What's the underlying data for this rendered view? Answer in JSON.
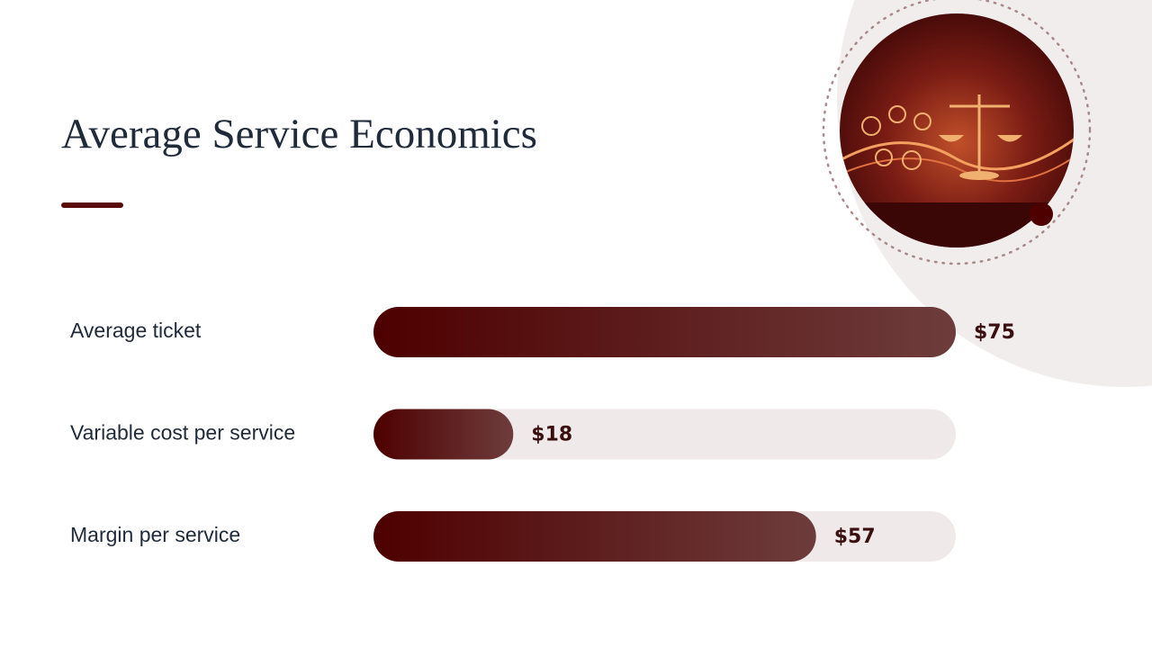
{
  "chart_data": {
    "type": "bar",
    "orientation": "horizontal",
    "title": "Average Service Economics",
    "categories": [
      "Average ticket",
      "Variable cost per service",
      "Margin per service"
    ],
    "values": [
      75,
      18,
      57
    ],
    "value_labels": [
      "$75",
      "$18",
      "$57"
    ],
    "xlim": [
      0,
      75
    ],
    "color": "#4e0000"
  }
}
